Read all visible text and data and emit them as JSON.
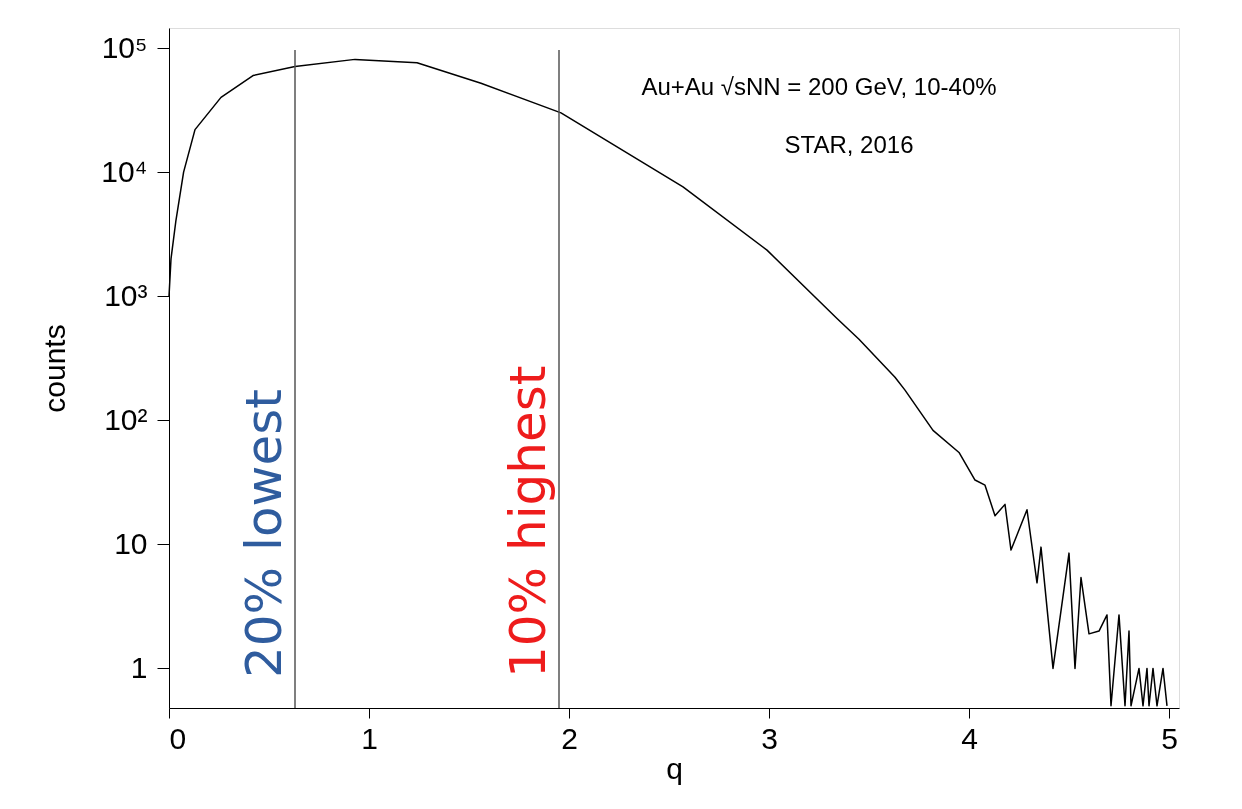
{
  "chart_data": {
    "type": "line",
    "xlabel": "q",
    "ylabel": "counts",
    "log": "y",
    "xlim": [
      0,
      5.05
    ],
    "xticks": [
      0,
      1,
      2,
      3,
      4,
      5
    ],
    "ylim": [
      0.48,
      145000
    ],
    "yticks": [
      1,
      10,
      {
        "value": 100,
        "label": "10²"
      },
      {
        "value": 1000,
        "label": "10³"
      },
      {
        "value": 10000,
        "label": "10⁴"
      },
      {
        "value": 100000,
        "label": "10⁵"
      }
    ],
    "grid": false,
    "marker": "none",
    "line_style": "solid",
    "series": [
      {
        "color": "#000000",
        "x": [
          0.0,
          0.01,
          0.034,
          0.073,
          0.13,
          0.26,
          0.42,
          0.63,
          0.93,
          1.24,
          1.56,
          1.96,
          2.57,
          2.99,
          3.34,
          3.45,
          3.63,
          3.68,
          3.82,
          3.95,
          4.03,
          4.08,
          4.13,
          4.18,
          4.21,
          4.29,
          4.34,
          4.36,
          4.42,
          4.5,
          4.53,
          4.56,
          4.6,
          4.65,
          4.69,
          4.71,
          4.75,
          4.78,
          4.8,
          4.81,
          4.85,
          4.87,
          4.89,
          4.9,
          4.92,
          4.94,
          4.97,
          4.99
        ],
        "values": [
          1000,
          2000,
          4000,
          10000,
          22000,
          40000,
          60000,
          71000,
          81000,
          76000,
          52000,
          30000,
          7600,
          2350,
          660,
          450,
          222,
          175,
          83,
          55,
          33,
          30,
          17,
          21,
          9,
          19,
          4.9,
          9.5,
          1,
          8.5,
          1,
          5.4,
          1.9,
          2,
          2.7,
          0.5,
          2.7,
          0.5,
          2,
          0.5,
          1,
          0.5,
          1,
          0.5,
          1,
          0.5,
          1,
          0.5
        ]
      }
    ],
    "ref_lines": [
      {
        "axis": "x",
        "value": 0.63,
        "label": "20% lowest",
        "color": "#555555"
      },
      {
        "axis": "x",
        "value": 1.95,
        "label": "10% highest",
        "color": "#555555"
      }
    ],
    "annotations": [
      "Au+Au √sNN = 200 GeV, 10-40%",
      "STAR, 2016"
    ]
  }
}
